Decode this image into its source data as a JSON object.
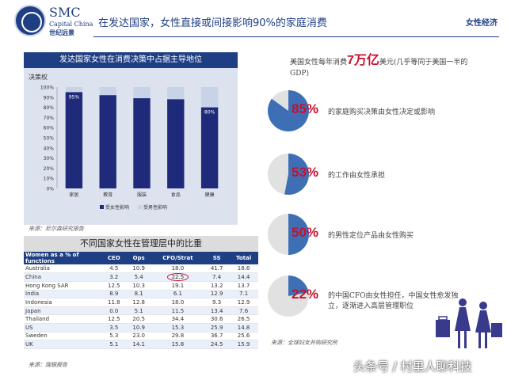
{
  "header": {
    "logo_main": "SMC",
    "logo_sub": "Capital China",
    "logo_cn": "世纪远景",
    "title": "在发达国家，女性直接或间接影响90%的家庭消费",
    "tag": "女性经济"
  },
  "chart_data": {
    "type": "bar",
    "title": "发达国家女性在消费决策中占据主导地位",
    "ylabel": "决策权",
    "ylim": [
      0,
      100
    ],
    "yticks": [
      "0%",
      "10%",
      "20%",
      "30%",
      "40%",
      "50%",
      "60%",
      "70%",
      "80%",
      "90%",
      "100%"
    ],
    "categories": [
      "家居",
      "教育",
      "服装",
      "食品",
      "健康"
    ],
    "series": [
      {
        "name": "受女性影响",
        "values": [
          95,
          92,
          89,
          88,
          80
        ],
        "color": "#1f2a7a"
      },
      {
        "name": "受男性影响",
        "values": [
          5,
          8,
          11,
          12,
          20
        ],
        "color": "#c9d3e8"
      }
    ],
    "data_labels": [
      "95%",
      "80%"
    ],
    "legend_position": "bottom"
  },
  "chart_source": "来源：尼尔森研究报告",
  "table": {
    "title": "不同国家女性在管理层中的比重",
    "headers": [
      "Women as a % of functions",
      "CEO",
      "Ops",
      "CFO/Strat",
      "SS",
      "Total"
    ],
    "rows": [
      [
        "Australia",
        "4.5",
        "10.9",
        "18.0",
        "41.7",
        "18.6"
      ],
      [
        "China",
        "3.2",
        "5.4",
        "22.5",
        "7.4",
        "14.4"
      ],
      [
        "Hong Kong SAR",
        "12.5",
        "10.3",
        "19.1",
        "13.2",
        "13.7"
      ],
      [
        "India",
        "8.9",
        "8.1",
        "6.1",
        "12.9",
        "7.1"
      ],
      [
        "Indonesia",
        "11.8",
        "12.8",
        "18.0",
        "9.3",
        "12.9"
      ],
      [
        "Japan",
        "0.0",
        "5.1",
        "11.5",
        "13.4",
        "7.6"
      ],
      [
        "Thailand",
        "12.5",
        "20.5",
        "34.4",
        "30.6",
        "26.5"
      ],
      [
        "US",
        "3.5",
        "10.9",
        "15.3",
        "25.9",
        "14.8"
      ],
      [
        "Sweden",
        "5.3",
        "23.0",
        "29.8",
        "36.7",
        "25.6"
      ],
      [
        "UK",
        "5.1",
        "14.1",
        "15.8",
        "24.5",
        "15.9"
      ]
    ],
    "source": "来源：瑞银报告"
  },
  "right": {
    "intro_pre": "美国女性每年消费",
    "intro_big": "7万亿",
    "intro_post": "美元(几乎等同于美国一半的GDP)",
    "facts": [
      {
        "pct": "85%",
        "text": "的家庭购买决策由女性决定或影响",
        "value": 85
      },
      {
        "pct": "53%",
        "text": "的工作由女性承担",
        "value": 53
      },
      {
        "pct": "50%",
        "text": "的男性定位产品由女性购买",
        "value": 50
      },
      {
        "pct": "22%",
        "text": "的中国CFO由女性担任，中国女性愈发独立，逐渐进入高层管理职位",
        "value": 22
      }
    ],
    "source": "来源：全球妇女并购研究所",
    "pie_color": "#3e6fb5",
    "pie_bg": "#e1e1e1"
  },
  "watermark": "头条号 / 村里人聊科技"
}
